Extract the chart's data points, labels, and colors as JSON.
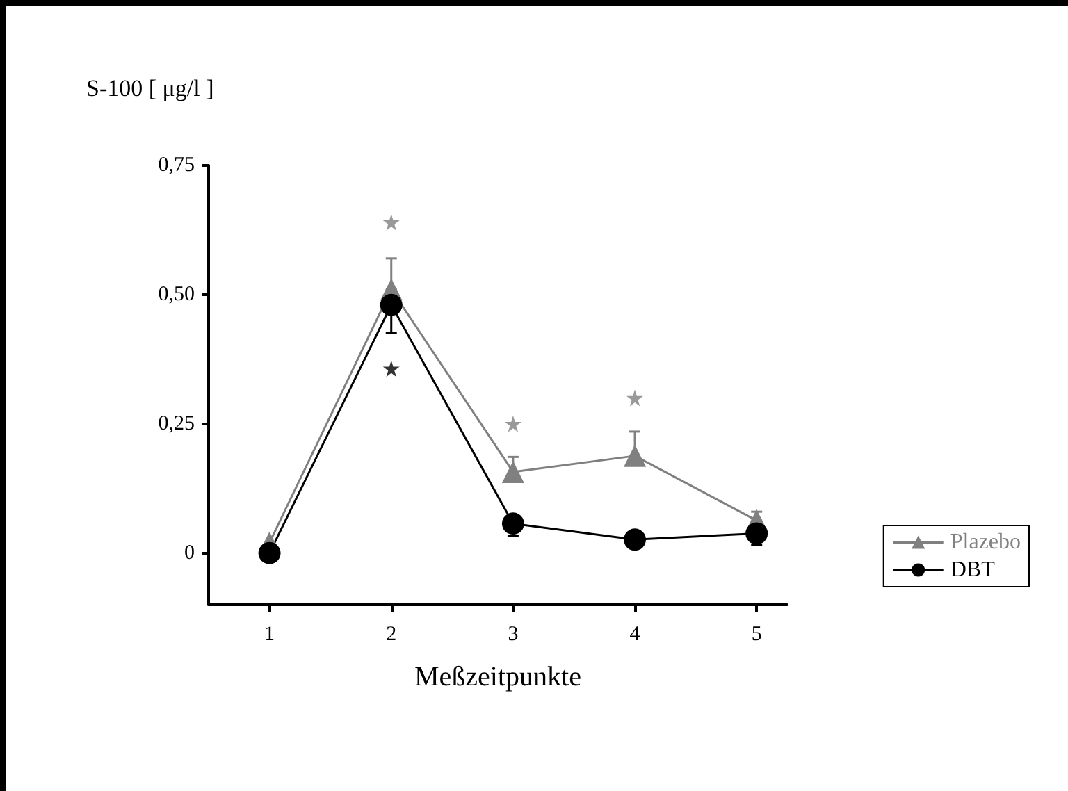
{
  "chart_data": {
    "type": "line",
    "ylabel": "S-100 [ μg/l ]",
    "xlabel": "Meßzeitpunkte",
    "x": [
      1,
      2,
      3,
      4,
      5
    ],
    "series": [
      {
        "name": "Plazebo",
        "color": "#808080",
        "marker": "triangle",
        "values": [
          0.02,
          0.51,
          0.157,
          0.188,
          0.063
        ],
        "errors": [
          null,
          [
            0.51,
            0.57
          ],
          [
            0.157,
            0.186
          ],
          [
            0.188,
            0.235
          ],
          [
            0.063,
            0.08
          ]
        ]
      },
      {
        "type": "scatter",
        "color": "#808080",
        "marker": "star",
        "x": [
          2,
          3,
          4
        ],
        "values": [
          0.64,
          0.25,
          0.3
        ]
      },
      {
        "type": "scatter",
        "color": "#000000",
        "marker": "star",
        "x": [
          2
        ],
        "values": [
          0.357
        ]
      },
      {
        "name": "DBT",
        "color": "#000000",
        "marker": "circle",
        "values": [
          0,
          0.48,
          0.057,
          0.026,
          0.038
        ],
        "errors": [
          null,
          [
            0.426,
            0.48
          ],
          [
            0.033,
            0.057
          ],
          null,
          [
            0.015,
            0.038
          ]
        ]
      }
    ],
    "xlim": [
      0.5,
      5.25
    ],
    "xticks": [
      1,
      2,
      3,
      4,
      5
    ],
    "ylim": [
      -0.1,
      0.75
    ],
    "yticks": [
      {
        "value": 0,
        "label": "0"
      },
      {
        "value": 0.25,
        "label": "0,25"
      },
      {
        "value": 0.5,
        "label": "0,50"
      },
      {
        "value": 0.75,
        "label": "0,75"
      }
    ],
    "grid": false,
    "legend": "bottom right",
    "line_style": "solid"
  }
}
